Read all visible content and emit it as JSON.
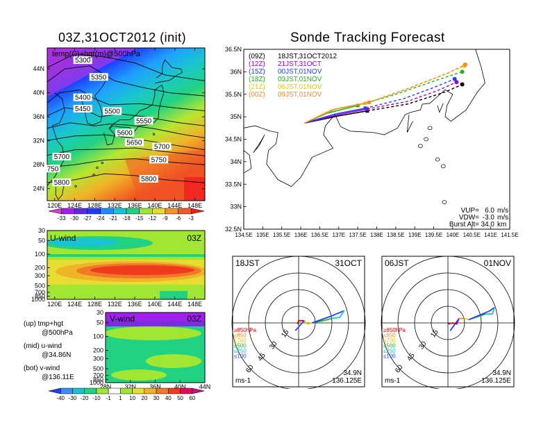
{
  "left_panel": {
    "title": "03Z,31OCT2012 (init)",
    "map_label": "temp(C)+hgt(m)@500hPa",
    "lat_labels": [
      "44N",
      "40N",
      "36N",
      "32N",
      "28N",
      "24N"
    ],
    "lon_labels": [
      "120E",
      "124E",
      "128E",
      "132E",
      "136E",
      "140E",
      "144E",
      "148E"
    ],
    "contour_labels": [
      {
        "text": "5300",
        "lon": 125.6,
        "lat": 45.4
      },
      {
        "text": "5350",
        "lon": 128.8,
        "lat": 42.6
      },
      {
        "text": "5400",
        "lon": 125.6,
        "lat": 39.2
      },
      {
        "text": "5450",
        "lon": 125.6,
        "lat": 37.3
      },
      {
        "text": "5500",
        "lon": 131.5,
        "lat": 36.9
      },
      {
        "text": "5550",
        "lon": 137.8,
        "lat": 35.3
      },
      {
        "text": "5600",
        "lon": 134.0,
        "lat": 33.3
      },
      {
        "text": "5650",
        "lon": 135.9,
        "lat": 31.7
      },
      {
        "text": "5700",
        "lon": 141.4,
        "lat": 31.0
      },
      {
        "text": "5700",
        "lon": 121.4,
        "lat": 29.3
      },
      {
        "text": "5750",
        "lon": 140.8,
        "lat": 28.8
      },
      {
        "text": "750",
        "lon": 119.6,
        "lat": 27.3
      },
      {
        "text": "5800",
        "lon": 121.4,
        "lat": 25.0
      },
      {
        "text": "5800",
        "lon": 138.8,
        "lat": 25.6
      }
    ],
    "temp_colorbar": {
      "labels": [
        "-33",
        "-30",
        "-27",
        "-24",
        "-21",
        "-18",
        "-15",
        "-12",
        "-9",
        "-6",
        "-3"
      ],
      "colors": [
        "#e03ad4",
        "#a020f0",
        "#5a2ddc",
        "#1e3cff",
        "#1e8cff",
        "#19c3d2",
        "#20d282",
        "#a0e632",
        "#e6dc32",
        "#f09628",
        "#f05a28",
        "#f01e1e"
      ]
    }
  },
  "u_wind": {
    "label": "U-wind",
    "time": "03Z",
    "y_labels": [
      "30",
      "50",
      "100",
      "200",
      "300",
      "500",
      "700",
      "850",
      "1000"
    ],
    "x_labels": [
      "120E",
      "124E",
      "128E",
      "132E",
      "136E",
      "140E",
      "144E",
      "148E"
    ]
  },
  "v_wind": {
    "label": "V-wind",
    "time": "03Z",
    "y_labels": [
      "30",
      "50",
      "100",
      "200",
      "300",
      "500",
      "700",
      "850",
      "1000"
    ],
    "x_labels": [
      "28N",
      "32N",
      "36N",
      "40N",
      "44N"
    ]
  },
  "legend_notes": [
    {
      "line1": "(up) tmp+hgt",
      "line2": "@500hPa"
    },
    {
      "line1": "(mid) u-wind",
      "line2": "@34.86N"
    },
    {
      "line1": "(bot) v-wind",
      "line2": "@136.11E"
    }
  ],
  "wind_colorbar": {
    "labels": [
      "-40",
      "-30",
      "-20",
      "-10",
      "-1",
      "1",
      "10",
      "20",
      "30",
      "40",
      "50",
      "60"
    ],
    "colors": [
      "#1e3cff",
      "#3c8cff",
      "#19c3d2",
      "#20d282",
      "#a0e632",
      "#ffffff",
      "#a0e632",
      "#e6dc32",
      "#f0b428",
      "#f07828",
      "#f03c1e",
      "#e60a5a",
      "#c80a8c"
    ]
  },
  "track": {
    "title": "Sonde Tracking Forecast",
    "y_labels": [
      "36.5N",
      "36N",
      "35.5N",
      "35N",
      "34.5N",
      "34N",
      "33.5N",
      "33N",
      "32.5N"
    ],
    "x_labels": [
      "134.5E",
      "135E",
      "135.5E",
      "136E",
      "136.5E",
      "137E",
      "137.5E",
      "138E",
      "138.5E",
      "139E",
      "139.5E",
      "140E",
      "140.5E",
      "141E",
      "141.5E"
    ],
    "launches": [
      {
        "tag": "(09Z)",
        "desc": "18JST,31OCT2012",
        "color": "#000000"
      },
      {
        "tag": "(12Z)",
        "desc": "21JST,31OCT",
        "color": "#a000c8"
      },
      {
        "tag": "(15Z)",
        "desc": "00JST,01NOV",
        "color": "#2040ff"
      },
      {
        "tag": "(18Z)",
        "desc": "03JST,01NOV",
        "color": "#20b020"
      },
      {
        "tag": "(21Z)",
        "desc": "06JST,01NOV",
        "color": "#e6c800"
      },
      {
        "tag": "(00Z)",
        "desc": "09JST,01NOV",
        "color": "#f08c28"
      }
    ],
    "params": [
      {
        "label": "VUP=",
        "value": "6.0",
        "unit": "m/s"
      },
      {
        "label": "VDW=",
        "value": "-3.0",
        "unit": "m/s"
      },
      {
        "label": "Burst Alt=",
        "value": "34.0",
        "unit": "km"
      }
    ]
  },
  "chart_data": [
    {
      "type": "line",
      "title": "Sonde Tracking Forecast",
      "xlim": [
        134.5,
        141.5
      ],
      "ylim": [
        32.5,
        36.5
      ],
      "series": [
        {
          "name": "(09Z) 18JST,31OCT2012",
          "color": "#000000",
          "points": [
            [
              136.1,
              34.86
            ],
            [
              137.0,
              35.02
            ],
            [
              137.75,
              35.13
            ],
            [
              138.8,
              35.28
            ],
            [
              139.8,
              35.55
            ],
            [
              140.25,
              35.72
            ]
          ]
        },
        {
          "name": "(12Z) 21JST,31OCT",
          "color": "#a000c8",
          "points": [
            [
              136.1,
              34.86
            ],
            [
              137.0,
              35.05
            ],
            [
              137.75,
              35.17
            ],
            [
              138.8,
              35.34
            ],
            [
              139.6,
              35.58
            ],
            [
              140.1,
              35.77
            ]
          ]
        },
        {
          "name": "(15Z) 00JST,01NOV",
          "color": "#2040ff",
          "points": [
            [
              136.1,
              34.86
            ],
            [
              136.9,
              35.06
            ],
            [
              137.7,
              35.19
            ],
            [
              138.7,
              35.4
            ],
            [
              139.5,
              35.65
            ],
            [
              140.05,
              35.84
            ]
          ]
        },
        {
          "name": "(18Z) 03JST,01NOV",
          "color": "#20b020",
          "points": [
            [
              136.1,
              34.86
            ],
            [
              136.7,
              35.08
            ],
            [
              137.5,
              35.25
            ],
            [
              138.5,
              35.5
            ],
            [
              139.6,
              35.82
            ],
            [
              140.25,
              36.0
            ]
          ]
        },
        {
          "name": "(21Z) 06JST,01NOV",
          "color": "#e6c800",
          "points": [
            [
              136.1,
              34.86
            ],
            [
              136.8,
              35.15
            ],
            [
              137.7,
              35.3
            ],
            [
              138.8,
              35.62
            ],
            [
              139.8,
              35.95
            ],
            [
              140.3,
              36.13
            ]
          ]
        },
        {
          "name": "(00Z) 09JST,01NOV",
          "color": "#f08c28",
          "points": [
            [
              136.1,
              34.86
            ],
            [
              136.9,
              35.17
            ],
            [
              137.8,
              35.32
            ],
            [
              138.9,
              35.65
            ],
            [
              139.9,
              35.98
            ],
            [
              140.33,
              36.16
            ]
          ]
        }
      ]
    },
    {
      "type": "hodograph",
      "title": "18JST 31OCT",
      "ring_labels": [
        "15",
        "30",
        "45",
        "60"
      ],
      "unit": "ms-1",
      "legend": [
        "≥850hPa",
        "≤850",
        "≤700",
        "≤500",
        "≤250",
        "≤100"
      ],
      "legend_colors": [
        "#e00000",
        "#f08c28",
        "#e6c800",
        "#20b020",
        "#19c3d2",
        "#2040ff"
      ],
      "location": {
        "lat": "34.9N",
        "lon": "136.125E"
      },
      "segments": [
        {
          "color": "#e00000",
          "points": [
            [
              -1,
              -1
            ],
            [
              0,
              2
            ],
            [
              3,
              2
            ],
            [
              5,
              2
            ]
          ]
        },
        {
          "color": "#e6c800",
          "points": [
            [
              5,
              2
            ],
            [
              8,
              -1
            ],
            [
              12,
              0
            ]
          ]
        },
        {
          "color": "#20b020",
          "points": [
            [
              12,
              0
            ],
            [
              22,
              2
            ],
            [
              30,
              4
            ]
          ]
        },
        {
          "color": "#2040ff",
          "points": [
            [
              5,
              2
            ],
            [
              -3,
              -7
            ]
          ]
        },
        {
          "color": "#2040ff",
          "points": [
            [
              12,
              0
            ],
            [
              29,
              6
            ],
            [
              41,
              11
            ]
          ]
        },
        {
          "color": "#19c3d2",
          "points": [
            [
              41,
              11
            ],
            [
              37,
              5
            ],
            [
              30,
              4
            ]
          ]
        }
      ]
    },
    {
      "type": "hodograph",
      "title": "06JST 01NOV",
      "ring_labels": [
        "15",
        "30",
        "45",
        "60"
      ],
      "unit": "ms-1",
      "legend": [
        "≥850hPa",
        "≤850",
        "≤700",
        "≤500",
        "≤250",
        "≤100"
      ],
      "legend_colors": [
        "#e00000",
        "#f08c28",
        "#e6c800",
        "#20b020",
        "#19c3d2",
        "#2040ff"
      ],
      "location": {
        "lat": "34.9N",
        "lon": "136.125E"
      },
      "segments": [
        {
          "color": "#e00000",
          "points": [
            [
              0,
              -1
            ],
            [
              4,
              0
            ],
            [
              8,
              -1
            ],
            [
              10,
              4
            ]
          ]
        },
        {
          "color": "#f08c28",
          "points": [
            [
              10,
              4
            ],
            [
              15,
              4
            ]
          ]
        },
        {
          "color": "#e6c800",
          "points": [
            [
              15,
              4
            ],
            [
              19,
              3
            ]
          ]
        },
        {
          "color": "#20b020",
          "points": [
            [
              19,
              3
            ],
            [
              28,
              6
            ],
            [
              34,
              8
            ]
          ]
        },
        {
          "color": "#2040ff",
          "points": [
            [
              10,
              4
            ],
            [
              2,
              -7
            ]
          ]
        },
        {
          "color": "#2040ff",
          "points": [
            [
              19,
              3
            ],
            [
              38,
              11
            ],
            [
              42,
              14
            ]
          ]
        },
        {
          "color": "#19c3d2",
          "points": [
            [
              42,
              14
            ],
            [
              40,
              8
            ],
            [
              34,
              8
            ]
          ]
        }
      ]
    }
  ]
}
